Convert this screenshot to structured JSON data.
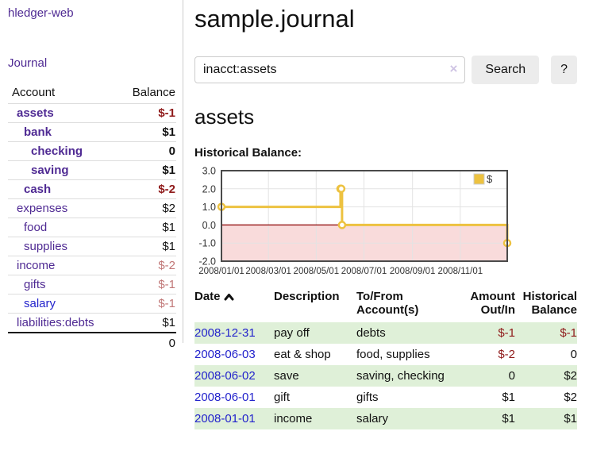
{
  "app": {
    "brand": "hledger-web",
    "nav_journal": "Journal"
  },
  "colors": {
    "link_purple": "#4f2a93",
    "link_blue": "#2323cc",
    "negative_strong": "#8f1a1a",
    "negative_muted": "#c17777",
    "row_green": "#dff0d8",
    "chart_gold": "#edc240",
    "chart_below_zero_fill": "#f9dbdb",
    "chart_zero_line": "#8b0000"
  },
  "sidebar": {
    "headers": {
      "account": "Account",
      "balance": "Balance"
    },
    "accounts": [
      {
        "name": "assets",
        "depth": 0,
        "balance": "$-1",
        "in_query": true,
        "balance_style": "negative-strong",
        "link_color": "purple"
      },
      {
        "name": "bank",
        "depth": 1,
        "balance": "$1",
        "in_query": true,
        "balance_style": "normal",
        "link_color": "purple"
      },
      {
        "name": "checking",
        "depth": 2,
        "balance": "0",
        "in_query": true,
        "balance_style": "normal",
        "link_color": "purple"
      },
      {
        "name": "saving",
        "depth": 2,
        "balance": "$1",
        "in_query": true,
        "balance_style": "normal",
        "link_color": "purple"
      },
      {
        "name": "cash",
        "depth": 1,
        "balance": "$-2",
        "in_query": true,
        "balance_style": "negative-strong",
        "link_color": "purple"
      },
      {
        "name": "expenses",
        "depth": 0,
        "balance": "$2",
        "in_query": false,
        "balance_style": "normal",
        "link_color": "purple"
      },
      {
        "name": "food",
        "depth": 1,
        "balance": "$1",
        "in_query": false,
        "balance_style": "normal",
        "link_color": "purple"
      },
      {
        "name": "supplies",
        "depth": 1,
        "balance": "$1",
        "in_query": false,
        "balance_style": "normal",
        "link_color": "purple"
      },
      {
        "name": "income",
        "depth": 0,
        "balance": "$-2",
        "in_query": false,
        "balance_style": "negative-muted",
        "link_color": "purple"
      },
      {
        "name": "gifts",
        "depth": 1,
        "balance": "$-1",
        "in_query": false,
        "balance_style": "negative-muted",
        "link_color": "purple"
      },
      {
        "name": "salary",
        "depth": 1,
        "balance": "$-1",
        "in_query": false,
        "balance_style": "negative-muted",
        "link_color": "blue"
      },
      {
        "name": "liabilities:debts",
        "depth": 0,
        "balance": "$1",
        "in_query": false,
        "balance_style": "normal",
        "link_color": "purple"
      }
    ],
    "total": "0"
  },
  "header": {
    "title": "sample.journal"
  },
  "search": {
    "value": "inacct:assets",
    "clear_icon": "×",
    "button_label": "Search",
    "help_label": "?"
  },
  "account_page": {
    "heading": "assets",
    "chart_label": "Historical Balance:"
  },
  "chart_data": {
    "type": "line",
    "step": true,
    "title": "Historical Balance",
    "legend": "$",
    "legend_position": "top-right",
    "grid": true,
    "ylim": [
      -2.0,
      3.0
    ],
    "yticks": [
      "3.0",
      "2.0",
      "1.0",
      "0.0",
      "-1.0",
      "-2.0"
    ],
    "xticks": [
      "2008/01/01",
      "2008/03/01",
      "2008/05/01",
      "2008/07/01",
      "2008/09/01",
      "2008/11/01"
    ],
    "x_range": [
      "2008-01-01",
      "2008-12-31"
    ],
    "series": [
      {
        "name": "$",
        "color": "#edc240",
        "points": [
          [
            "2008-01-01",
            1.0
          ],
          [
            "2008-06-01",
            2.0
          ],
          [
            "2008-06-02",
            2.0
          ],
          [
            "2008-06-03",
            0.0
          ],
          [
            "2008-12-31",
            -1.0
          ]
        ]
      }
    ],
    "below_zero_fill": "#f9dbdb",
    "zero_line_color": "#8b0000"
  },
  "register": {
    "columns": [
      "Date",
      "Description",
      "To/From Account(s)",
      "Amount Out/In",
      "Historical Balance"
    ],
    "sort": {
      "column": "Date",
      "direction": "ascending",
      "icon": "chevron-up"
    },
    "rows": [
      {
        "date": "2008-12-31",
        "description": "pay off",
        "accounts": "debts",
        "amount": "$-1",
        "amount_negative": true,
        "balance": "$-1",
        "balance_negative": true
      },
      {
        "date": "2008-06-03",
        "description": "eat & shop",
        "accounts": "food, supplies",
        "amount": "$-2",
        "amount_negative": true,
        "balance": "0",
        "balance_negative": false
      },
      {
        "date": "2008-06-02",
        "description": "save",
        "accounts": "saving, checking",
        "amount": "0",
        "amount_negative": false,
        "balance": "$2",
        "balance_negative": false
      },
      {
        "date": "2008-06-01",
        "description": "gift",
        "accounts": "gifts",
        "amount": "$1",
        "amount_negative": false,
        "balance": "$2",
        "balance_negative": false
      },
      {
        "date": "2008-01-01",
        "description": "income",
        "accounts": "salary",
        "amount": "$1",
        "amount_negative": false,
        "balance": "$1",
        "balance_negative": false
      }
    ]
  }
}
